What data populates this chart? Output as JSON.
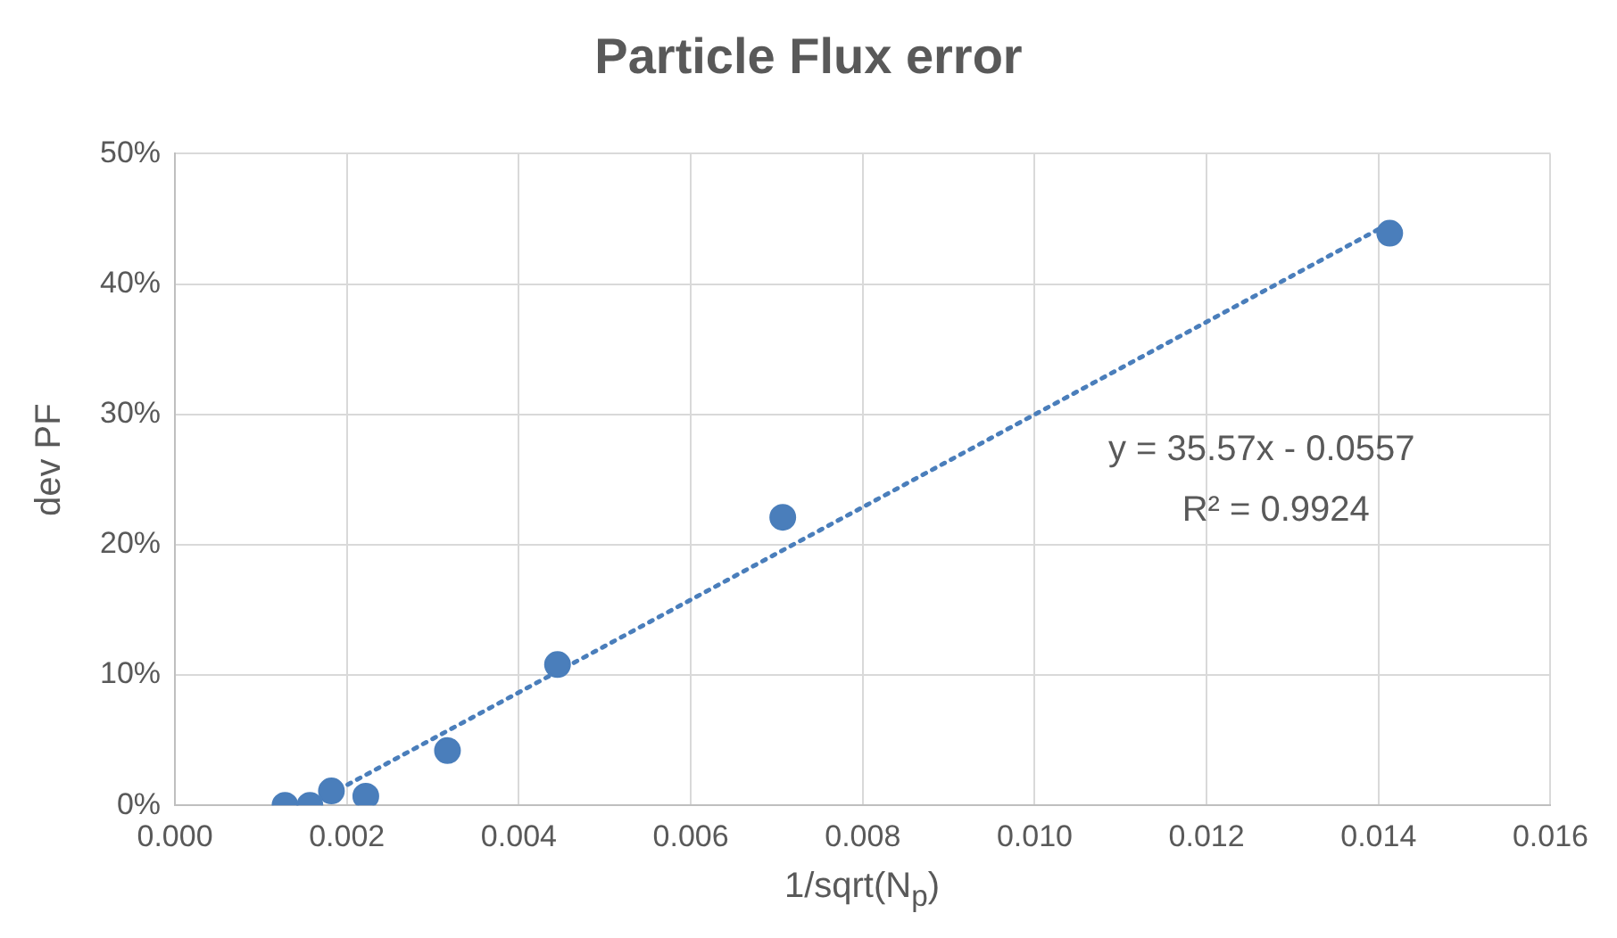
{
  "chart_data": {
    "type": "scatter",
    "title": "Particle Flux error",
    "xlabel": "1/sqrt(N$_{p}$)",
    "ylabel": "dev PF",
    "x": [
      0.00128,
      0.00157,
      0.00182,
      0.00222,
      0.00317,
      0.00445,
      0.00707,
      0.01413
    ],
    "series": [
      {
        "color": "#4a7ebb",
        "values": [
          0,
          0,
          0.011,
          0.007,
          0.042,
          0.108,
          0.221,
          0.439
        ]
      },
      {
        "type": "line",
        "color": "#4a7ebb",
        "line_style": "dotted",
        "marker": "none",
        "x": [
          0.0019,
          0.01414
        ],
        "values": [
          0.012,
          0.447
        ]
      }
    ],
    "xlim": [
      0,
      0.016
    ],
    "xticks": [
      {
        "value": 0,
        "label": "0.000"
      },
      {
        "value": 0.002,
        "label": "0.002"
      },
      {
        "value": 0.004,
        "label": "0.004"
      },
      {
        "value": 0.006,
        "label": "0.006"
      },
      {
        "value": 0.008,
        "label": "0.008"
      },
      {
        "value": 0.01,
        "label": "0.010"
      },
      {
        "value": 0.012,
        "label": "0.012"
      },
      {
        "value": 0.014,
        "label": "0.014"
      },
      {
        "value": 0.016,
        "label": "0.016"
      }
    ],
    "ylim": [
      0,
      0.5
    ],
    "yticks": [
      {
        "value": 0,
        "label": "0%"
      },
      {
        "value": 0.1,
        "label": "10%"
      },
      {
        "value": 0.2,
        "label": "20%"
      },
      {
        "value": 0.3,
        "label": "30%"
      },
      {
        "value": 0.4,
        "label": "40%"
      },
      {
        "value": 0.5,
        "label": "50%"
      }
    ],
    "annotations": [
      "y = 35.57x - 0.0557",
      "R² = 0.9924"
    ],
    "grid": true,
    "legend": false,
    "marker": "circle"
  }
}
